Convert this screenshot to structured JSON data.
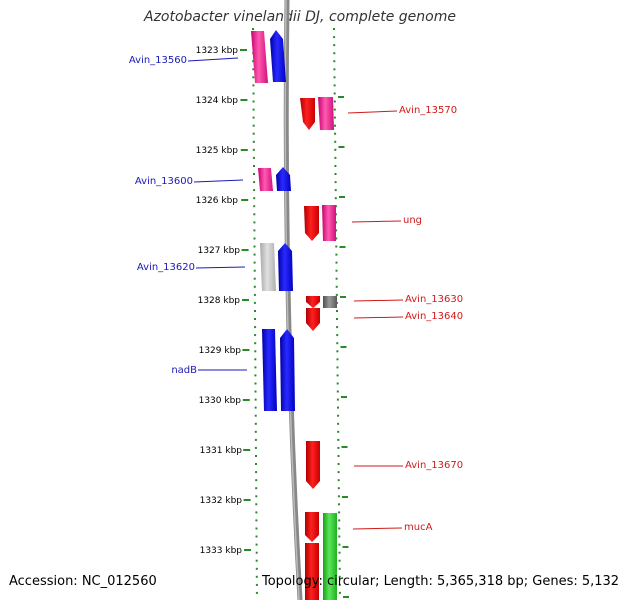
{
  "title": "Azotobacter vinelandii DJ, complete genome",
  "footer": {
    "accession": "Accession: NC_012560",
    "topology": "Topology: circular; Length: 5,365,318 bp; Genes: 5,132"
  },
  "ruler": [
    "1323 kbp",
    "1324 kbp",
    "1325 kbp",
    "1326 kbp",
    "1327 kbp",
    "1328 kbp",
    "1329 kbp",
    "1330 kbp",
    "1331 kbp",
    "1332 kbp",
    "1333 kbp"
  ],
  "colors": {
    "left_label": "#1a1ab8",
    "right_label": "#d11a1a",
    "dots": "#2a8a2a"
  },
  "left_labels": [
    {
      "text": "Avin_13560"
    },
    {
      "text": "Avin_13600"
    },
    {
      "text": "Avin_13620"
    },
    {
      "text": "nadB"
    }
  ],
  "right_labels": [
    {
      "text": "Avin_13570"
    },
    {
      "text": "ung"
    },
    {
      "text": "Avin_13630"
    },
    {
      "text": "Avin_13640"
    },
    {
      "text": "Avin_13670"
    },
    {
      "text": "mucA"
    }
  ]
}
